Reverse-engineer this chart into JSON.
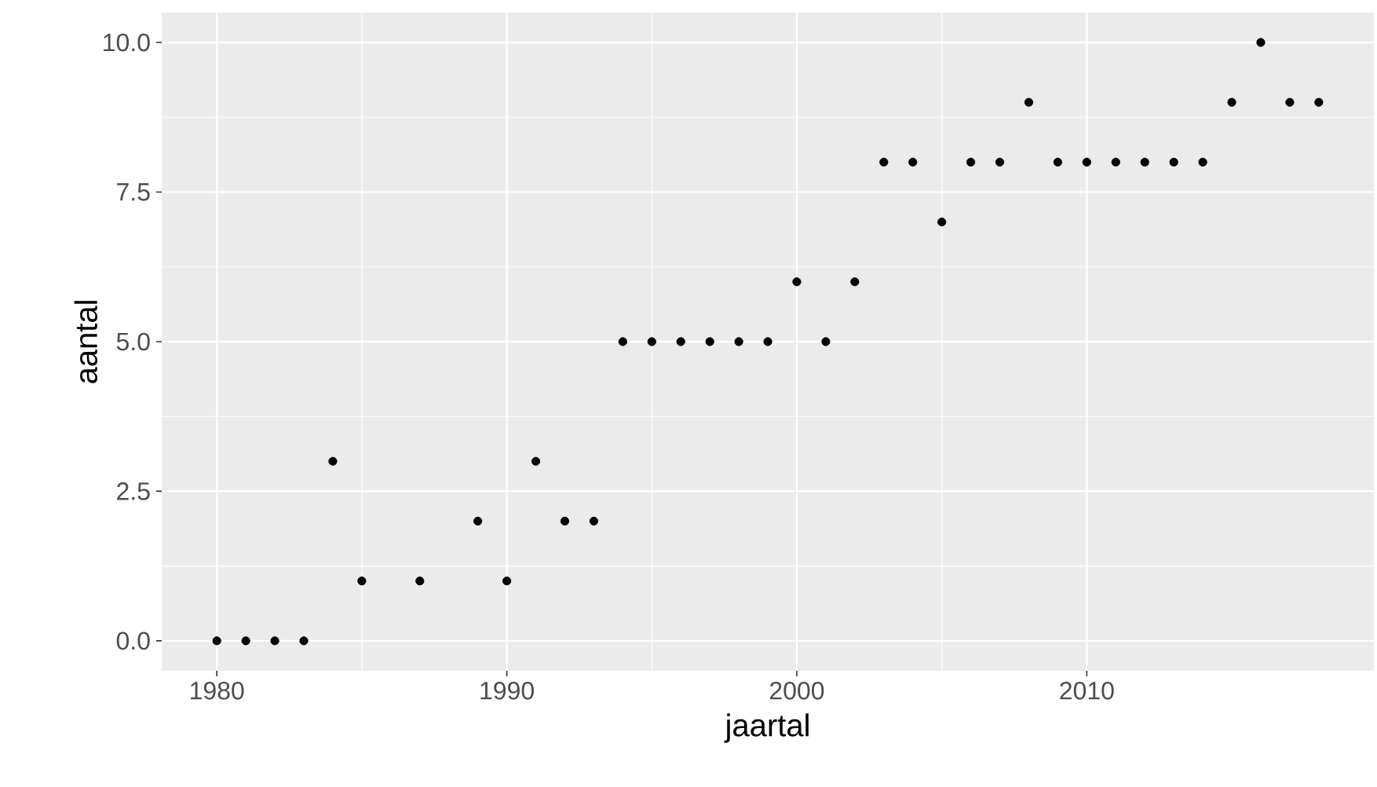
{
  "chart_data": {
    "type": "scatter",
    "xlabel": "jaartal",
    "ylabel": "aantal",
    "x": [
      1980,
      1981,
      1982,
      1983,
      1984,
      1985,
      1987,
      1989,
      1990,
      1991,
      1992,
      1993,
      1994,
      1995,
      1996,
      1997,
      1998,
      1999,
      2000,
      2001,
      2002,
      2003,
      2004,
      2005,
      2006,
      2007,
      2008,
      2009,
      2010,
      2011,
      2012,
      2013,
      2014,
      2015,
      2016,
      2017,
      2018
    ],
    "values": [
      0,
      0,
      0,
      0,
      3,
      1,
      1,
      2,
      1,
      3,
      2,
      2,
      5,
      5,
      5,
      5,
      5,
      5,
      6,
      5,
      6,
      8,
      8,
      7,
      8,
      8,
      9,
      8,
      8,
      8,
      8,
      8,
      8,
      9,
      10,
      9,
      9
    ],
    "color": "#000000",
    "marker": "circle",
    "grid": true,
    "xlim": [
      1978.1,
      2019.9
    ],
    "ylim": [
      -0.5,
      10.5
    ],
    "xticks": [
      1980,
      1990,
      2000,
      2010
    ],
    "yticks": [
      {
        "value": 0,
        "label": "0.0"
      },
      {
        "value": 2.5,
        "label": "2.5"
      },
      {
        "value": 5,
        "label": "5.0"
      },
      {
        "value": 7.5,
        "label": "7.5"
      },
      {
        "value": 10,
        "label": "10.0"
      }
    ]
  }
}
